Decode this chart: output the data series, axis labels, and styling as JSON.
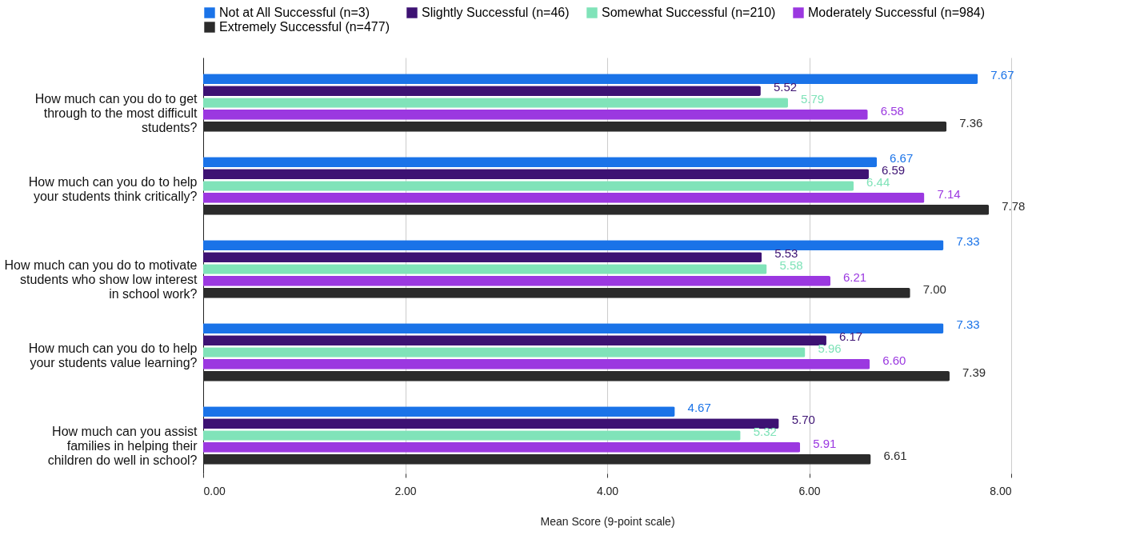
{
  "chart_data": {
    "type": "bar",
    "orientation": "horizontal",
    "xlabel": "Mean Score (9-point scale)",
    "categories": [
      "How much can you do to get through to the most difficult students?",
      "How much can you do to help your students think critically?",
      "How much can you do to motivate students who show low interest in school work?",
      "How much can you do to help your students value learning?",
      "How much can you assist families in helping their children do well in school?"
    ],
    "series": [
      {
        "name": "Not at All Successful (n=3)",
        "color": "#1a73e8",
        "values": [
          7.67,
          6.67,
          7.33,
          7.33,
          4.67
        ],
        "value_labels": [
          "7.67",
          "6.67",
          "7.33",
          "7.33",
          "4.67"
        ]
      },
      {
        "name": "Slightly Successful (n=46)",
        "color": "#3d1273",
        "values": [
          5.52,
          6.59,
          5.53,
          6.17,
          5.7
        ],
        "value_labels": [
          "5.52",
          "6.59",
          "5.53",
          "6.17",
          "5.70"
        ]
      },
      {
        "name": "Somewhat Successful (n=210)",
        "color": "#80e3b9",
        "values": [
          5.79,
          6.44,
          5.58,
          5.96,
          5.32
        ],
        "value_labels": [
          "5.79",
          "6.44",
          "5.58",
          "5.96",
          "5.32"
        ]
      },
      {
        "name": "Moderately Successful (n=984)",
        "color": "#9b38e0",
        "values": [
          6.58,
          7.14,
          6.21,
          6.6,
          5.91
        ],
        "value_labels": [
          "6.58",
          "7.14",
          "6.21",
          "6.60",
          "5.91"
        ]
      },
      {
        "name": "Extremely Successful (n=477)",
        "color": "#2b2b2b",
        "values": [
          7.36,
          7.78,
          7.0,
          7.39,
          6.61
        ],
        "value_labels": [
          "7.36",
          "7.78",
          "7.00",
          "7.39",
          "6.61"
        ]
      }
    ],
    "xlim": [
      0,
      8
    ],
    "xticks": [
      {
        "value": 0,
        "label": "0.00"
      },
      {
        "value": 2,
        "label": "2.00"
      },
      {
        "value": 4,
        "label": "4.00"
      },
      {
        "value": 6,
        "label": "6.00"
      },
      {
        "value": 8,
        "label": "8.00"
      }
    ],
    "grid": "x",
    "legend": "top"
  }
}
